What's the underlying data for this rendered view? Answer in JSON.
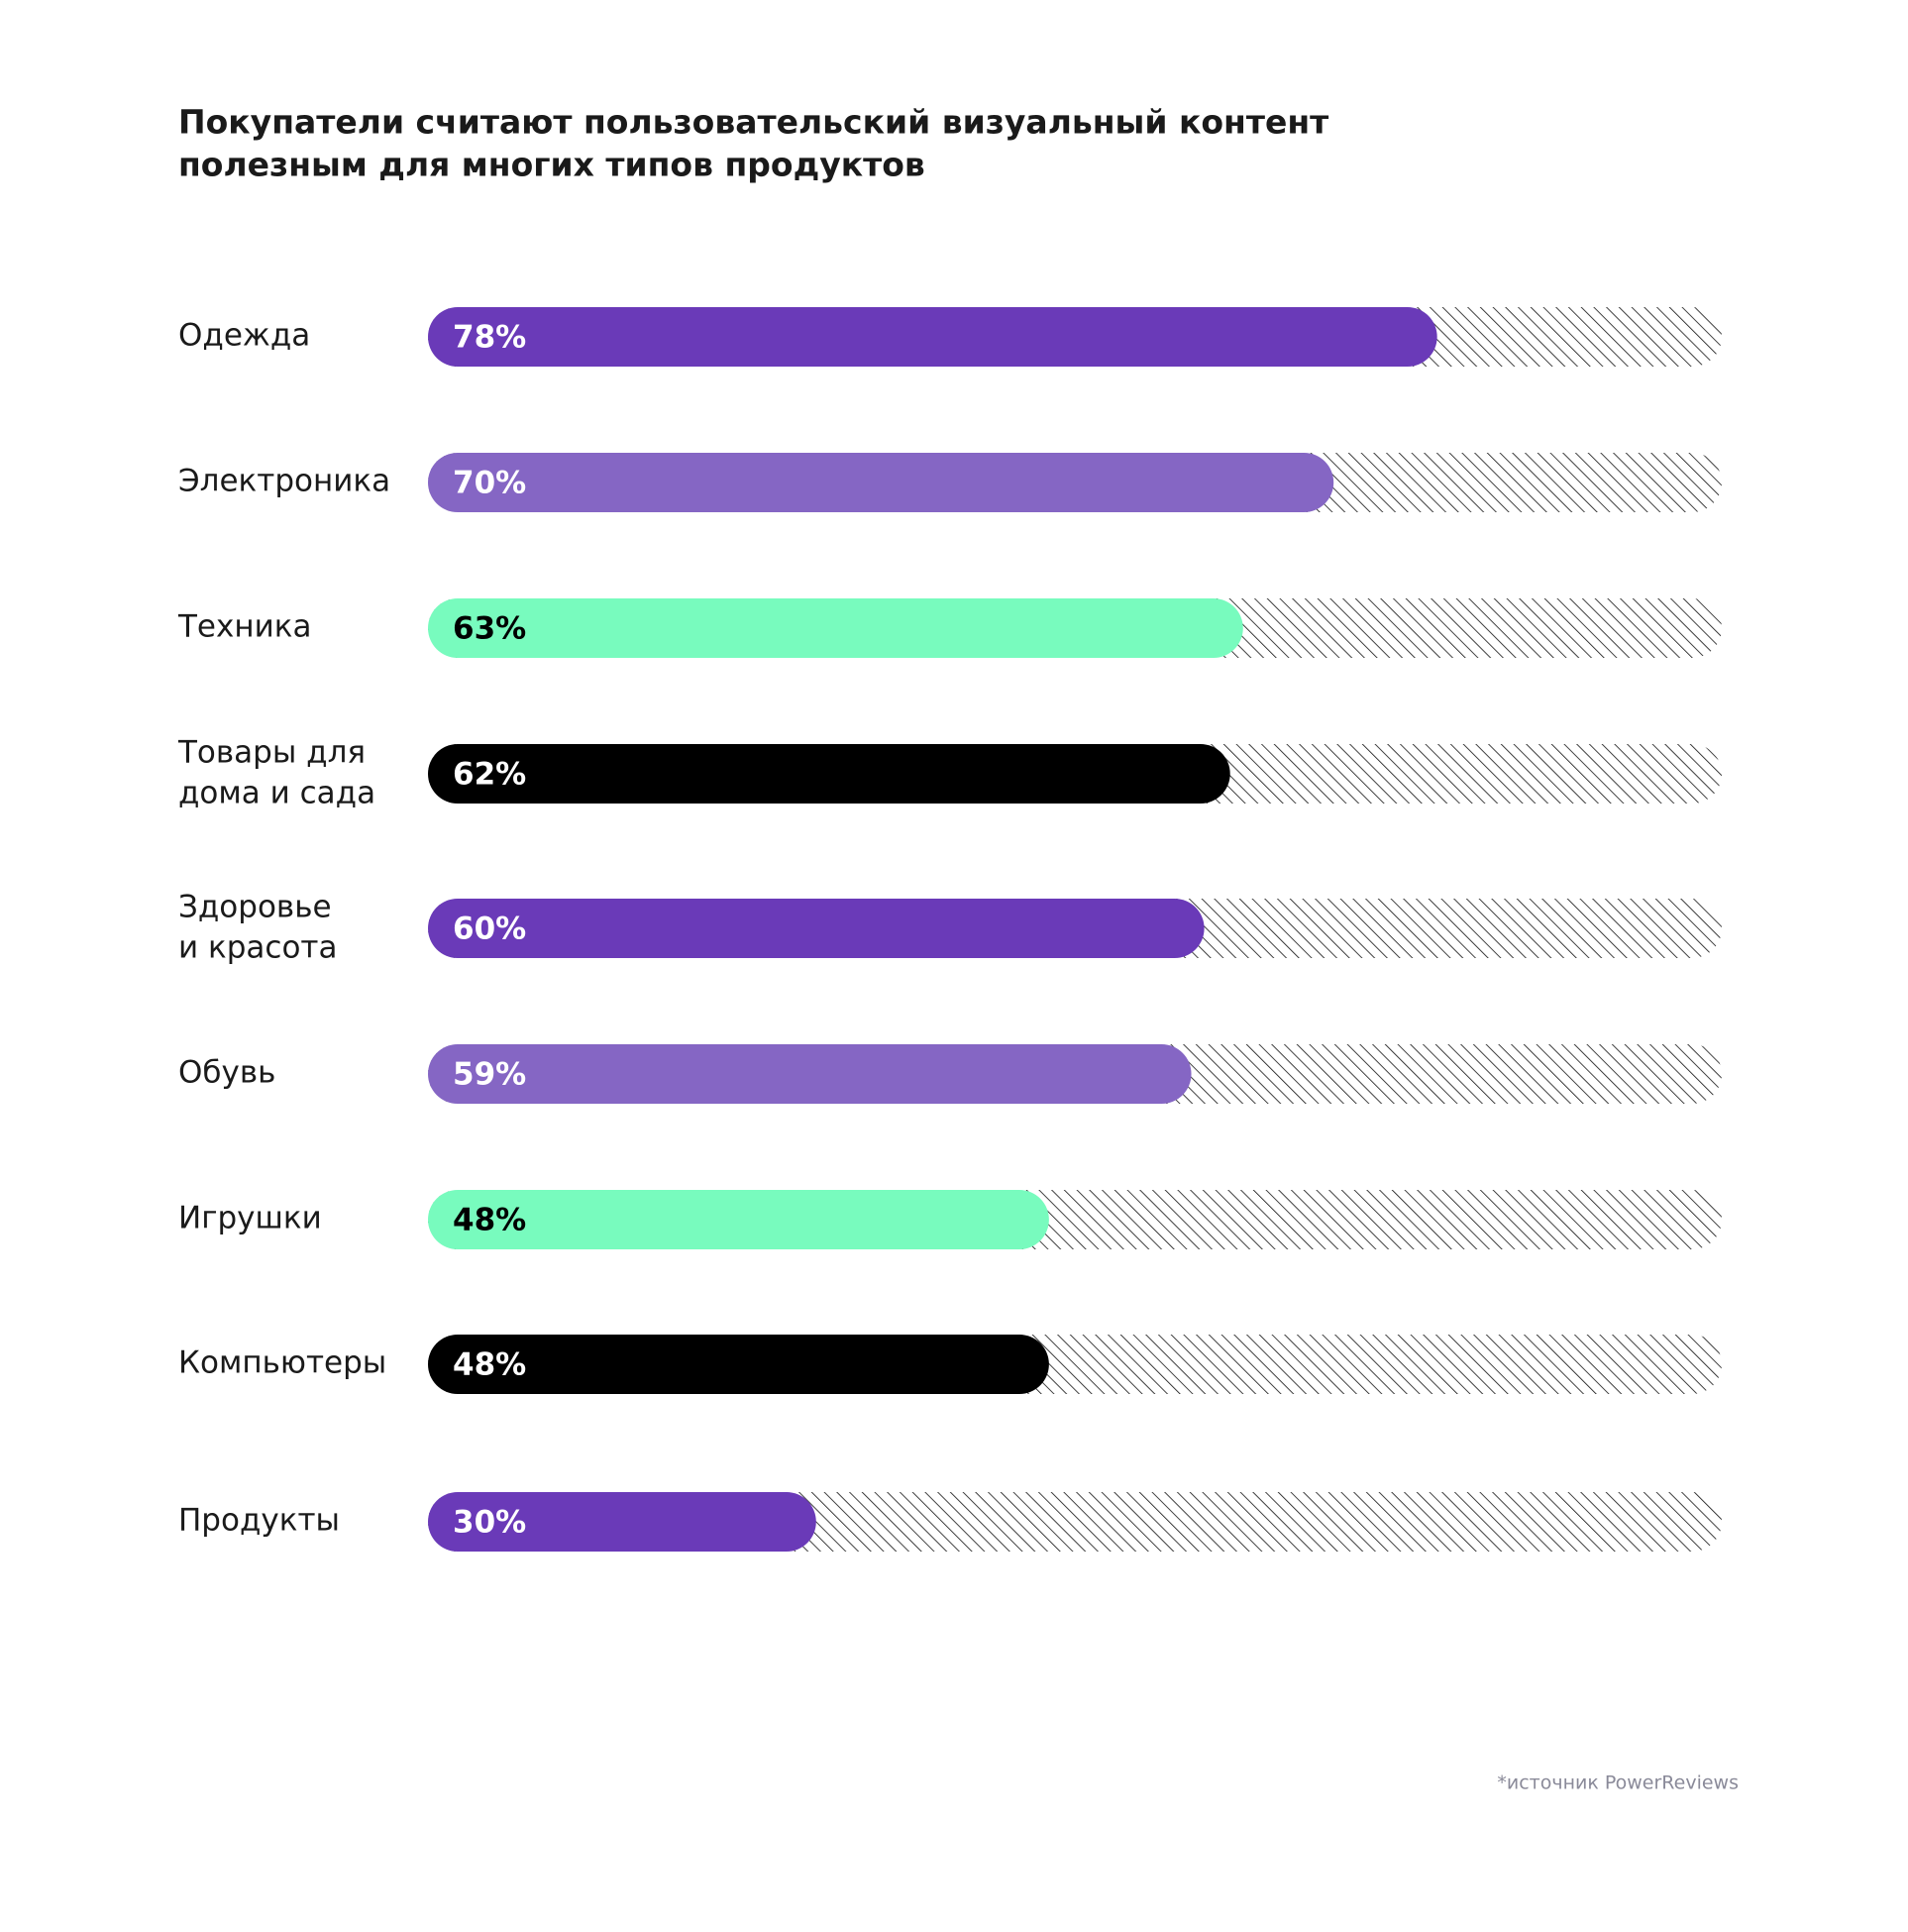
{
  "chart_data": {
    "type": "bar",
    "orientation": "horizontal",
    "title": "Покупатели считают пользовательский визуальный контент\nполезным для многих типов продуктов",
    "categories": [
      "Одежда",
      "Электроника",
      "Техника",
      "Товары для\nдома и сада",
      "Здоровье\nи красота",
      "Обувь",
      "Игрушки",
      "Компьютеры",
      "Продукты"
    ],
    "values": [
      78,
      70,
      63,
      62,
      60,
      59,
      48,
      48,
      30
    ],
    "value_labels": [
      "78%",
      "70%",
      "63%",
      "62%",
      "60%",
      "59%",
      "48%",
      "48%",
      "30%"
    ],
    "colors": [
      "#6a3ab8",
      "#8566c4",
      "#78fbbe",
      "#000000",
      "#6a3ab8",
      "#8566c4",
      "#78fbbe",
      "#000000",
      "#6a3ab8"
    ],
    "xlim": [
      0,
      100
    ],
    "source": "*источник PowerReviews"
  }
}
